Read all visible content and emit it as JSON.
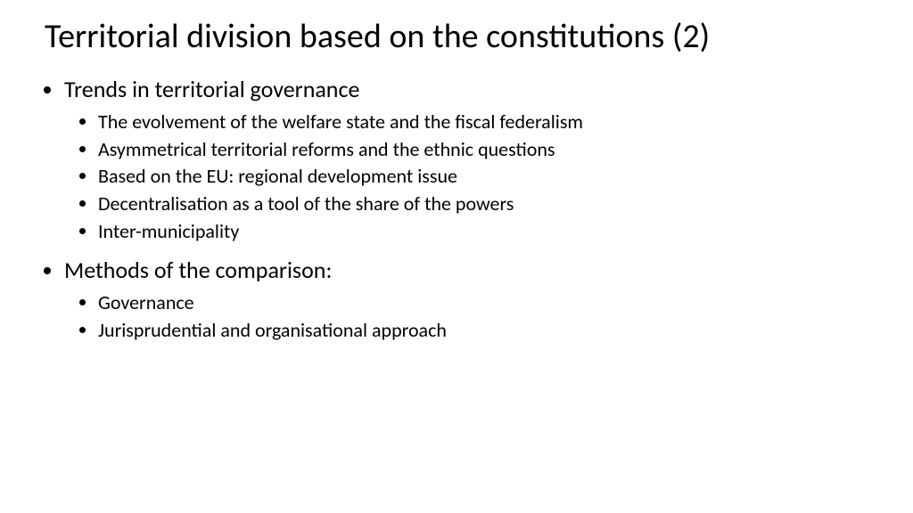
{
  "slide": {
    "title": "Territorial division based on the constitutions (2)",
    "title_fontsize": 38,
    "title_color": "#000000",
    "background_color": "#ffffff",
    "text_color": "#000000",
    "level1_fontsize": 26,
    "level2_fontsize": 22,
    "sections": [
      {
        "heading": "Trends in territorial governance",
        "items": [
          "The evolvement of the welfare state and the fiscal federalism",
          "Asymmetrical territorial reforms and the ethnic questions",
          "Based on the EU: regional development issue",
          "Decentralisation as a tool of the share of the powers",
          "Inter-municipality"
        ]
      },
      {
        "heading": "Methods of the comparison:",
        "items": [
          "Governance",
          "Jurisprudential and organisational approach"
        ]
      }
    ]
  }
}
